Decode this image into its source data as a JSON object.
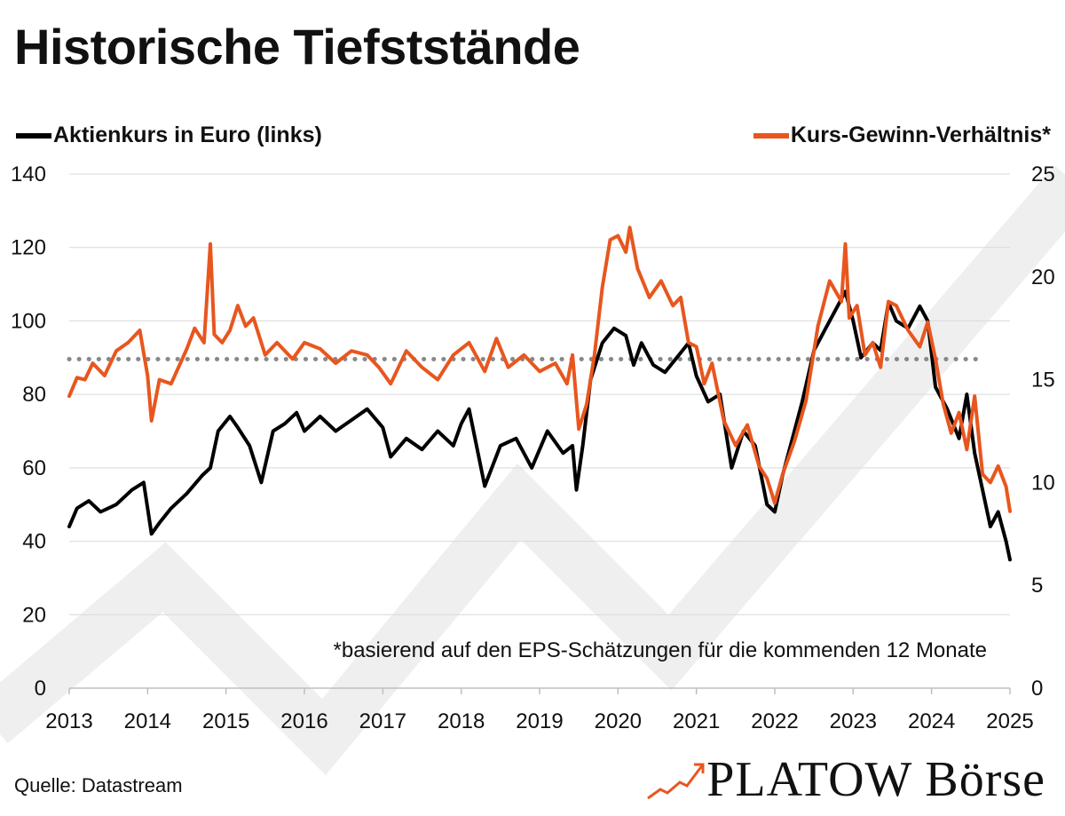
{
  "title": "Historische Tiefststände",
  "legend": {
    "left_label": "Aktienkurs in Euro (links)",
    "right_label": "Kurs-Gewinn-Verhältnis*",
    "left_color": "#000000",
    "right_color": "#e8561e"
  },
  "footnote": "*basierend auf den EPS-Schätzungen für die kommenden 12 Monate",
  "source": "Quelle: Datastream",
  "brand": "PLATOW Börse",
  "chart_data": {
    "type": "line",
    "x_ticks": [
      "2013",
      "2014",
      "2015",
      "2016",
      "2017",
      "2018",
      "2019",
      "2020",
      "2021",
      "2022",
      "2023",
      "2024",
      "2025"
    ],
    "xlim": [
      2013,
      2025
    ],
    "y_left": {
      "ticks": [
        0,
        20,
        40,
        60,
        80,
        100,
        120,
        140
      ],
      "lim": [
        0,
        140
      ]
    },
    "y_right": {
      "ticks": [
        0,
        5,
        10,
        15,
        20,
        25
      ],
      "lim": [
        0,
        25
      ]
    },
    "grid": "horizontal",
    "reference_line": {
      "axis": "right",
      "value": 16,
      "style": "dotted",
      "color": "#888888"
    },
    "series": [
      {
        "name": "Aktienkurs in Euro (links)",
        "axis": "left",
        "color": "#000000",
        "x": [
          2013.0,
          2013.1,
          2013.25,
          2013.4,
          2013.6,
          2013.8,
          2013.95,
          2014.05,
          2014.15,
          2014.3,
          2014.5,
          2014.7,
          2014.8,
          2014.9,
          2015.05,
          2015.15,
          2015.3,
          2015.45,
          2015.6,
          2015.75,
          2015.9,
          2016.0,
          2016.2,
          2016.4,
          2016.6,
          2016.8,
          2017.0,
          2017.1,
          2017.3,
          2017.5,
          2017.7,
          2017.9,
          2018.0,
          2018.1,
          2018.3,
          2018.5,
          2018.7,
          2018.9,
          2019.1,
          2019.3,
          2019.42,
          2019.47,
          2019.55,
          2019.65,
          2019.8,
          2019.95,
          2020.1,
          2020.2,
          2020.3,
          2020.45,
          2020.6,
          2020.75,
          2020.9,
          2021.0,
          2021.15,
          2021.3,
          2021.45,
          2021.6,
          2021.75,
          2021.9,
          2022.0,
          2022.1,
          2022.2,
          2022.35,
          2022.5,
          2022.65,
          2022.8,
          2022.9,
          2023.0,
          2023.1,
          2023.25,
          2023.35,
          2023.45,
          2023.55,
          2023.7,
          2023.85,
          2023.95,
          2024.05,
          2024.2,
          2024.35,
          2024.45,
          2024.55,
          2024.65,
          2024.75,
          2024.85,
          2024.95,
          2025.0
        ],
        "values": [
          44,
          49,
          51,
          48,
          50,
          54,
          56,
          42,
          45,
          49,
          53,
          58,
          60,
          70,
          74,
          71,
          66,
          56,
          70,
          72,
          75,
          70,
          74,
          70,
          73,
          76,
          71,
          63,
          68,
          65,
          70,
          66,
          72,
          76,
          55,
          66,
          68,
          60,
          70,
          64,
          66,
          54,
          66,
          84,
          94,
          98,
          96,
          88,
          94,
          88,
          86,
          90,
          94,
          85,
          78,
          80,
          60,
          70,
          66,
          50,
          48,
          58,
          66,
          78,
          92,
          98,
          104,
          108,
          100,
          90,
          94,
          92,
          105,
          100,
          98,
          104,
          100,
          82,
          76,
          68,
          80,
          64,
          54,
          44,
          48,
          40,
          35
        ]
      },
      {
        "name": "Kurs-Gewinn-Verhältnis*",
        "axis": "right",
        "color": "#e8561e",
        "x": [
          2013.0,
          2013.1,
          2013.2,
          2013.3,
          2013.45,
          2013.6,
          2013.75,
          2013.9,
          2014.0,
          2014.05,
          2014.15,
          2014.3,
          2014.5,
          2014.6,
          2014.72,
          2014.8,
          2014.85,
          2014.95,
          2015.05,
          2015.15,
          2015.25,
          2015.35,
          2015.5,
          2015.65,
          2015.85,
          2016.0,
          2016.2,
          2016.4,
          2016.6,
          2016.8,
          2016.95,
          2017.1,
          2017.3,
          2017.5,
          2017.7,
          2017.9,
          2018.1,
          2018.3,
          2018.45,
          2018.6,
          2018.8,
          2019.0,
          2019.2,
          2019.35,
          2019.42,
          2019.5,
          2019.6,
          2019.7,
          2019.8,
          2019.9,
          2020.0,
          2020.1,
          2020.15,
          2020.25,
          2020.4,
          2020.55,
          2020.7,
          2020.8,
          2020.9,
          2021.0,
          2021.1,
          2021.2,
          2021.35,
          2021.5,
          2021.65,
          2021.8,
          2021.9,
          2022.0,
          2022.1,
          2022.25,
          2022.4,
          2022.55,
          2022.7,
          2022.85,
          2022.9,
          2022.95,
          2023.05,
          2023.15,
          2023.25,
          2023.35,
          2023.45,
          2023.55,
          2023.7,
          2023.85,
          2023.95,
          2024.05,
          2024.15,
          2024.25,
          2024.35,
          2024.45,
          2024.55,
          2024.65,
          2024.75,
          2024.85,
          2024.95,
          2025.0
        ],
        "values": [
          14.2,
          15.1,
          15.0,
          15.8,
          15.2,
          16.4,
          16.8,
          17.4,
          15.2,
          13.0,
          15.0,
          14.8,
          16.5,
          17.5,
          16.8,
          21.6,
          17.2,
          16.8,
          17.4,
          18.6,
          17.6,
          18.0,
          16.2,
          16.8,
          16.0,
          16.8,
          16.5,
          15.8,
          16.4,
          16.2,
          15.6,
          14.8,
          16.4,
          15.6,
          15.0,
          16.2,
          16.8,
          15.4,
          17.0,
          15.6,
          16.2,
          15.4,
          15.8,
          14.8,
          16.2,
          12.6,
          13.8,
          16.2,
          19.5,
          21.8,
          22.0,
          21.2,
          22.4,
          20.4,
          19.0,
          19.8,
          18.6,
          19.0,
          16.8,
          16.6,
          14.8,
          15.8,
          13.0,
          11.8,
          12.8,
          10.8,
          10.2,
          9.0,
          10.4,
          12.0,
          14.0,
          17.6,
          19.8,
          18.8,
          21.6,
          18.0,
          18.6,
          16.2,
          16.8,
          15.6,
          18.8,
          18.6,
          17.4,
          16.6,
          17.8,
          16.0,
          13.8,
          12.4,
          13.4,
          11.6,
          14.2,
          10.4,
          10.0,
          10.8,
          9.8,
          8.6
        ]
      }
    ]
  }
}
